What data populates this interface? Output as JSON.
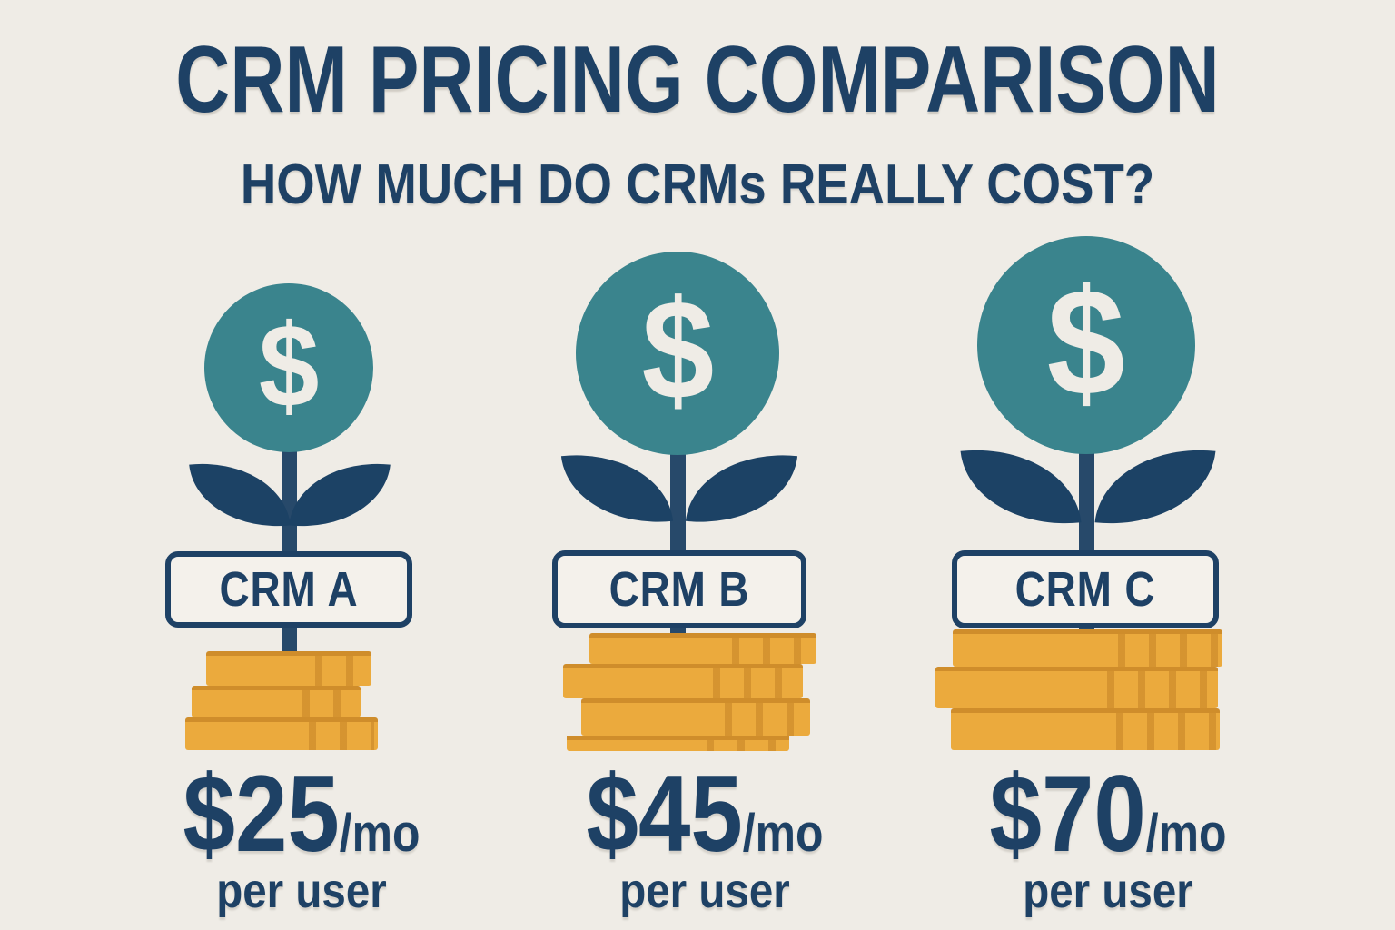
{
  "header": {
    "title": "CRM PRICING COMPARISON",
    "subtitle": "HOW MUCH DO CRMs REALLY COST?"
  },
  "colors": {
    "background": "#efece6",
    "navy_text": "#1e4165",
    "leaf_navy": "#1c4265",
    "stem_navy": "#27496a",
    "teal_circle": "#3a848d",
    "coin_gold": "#ebaa3d",
    "coin_gold_dark": "#cf8d2b",
    "label_box_fill": "#f4f1eb"
  },
  "chart_data": {
    "type": "bar",
    "title": "CRM PRICING COMPARISON",
    "subtitle": "HOW MUCH DO CRMs REALLY COST?",
    "categories": [
      "CRM A",
      "CRM B",
      "CRM C"
    ],
    "values": [
      25,
      45,
      70
    ],
    "unit": "USD per month per user",
    "value_labels": [
      "$25/mo per user",
      "$45/mo per user",
      "$70/mo per user"
    ],
    "legend_position": "none",
    "grid": false
  },
  "columns": [
    {
      "label": "CRM A",
      "symbol": "$",
      "amount": "$25",
      "period": "/mo",
      "per_user": "per user",
      "coins": 3
    },
    {
      "label": "CRM B",
      "symbol": "$",
      "amount": "$45",
      "period": "/mo",
      "per_user": "per user",
      "coins": 4
    },
    {
      "label": "CRM C",
      "symbol": "$",
      "amount": "$70",
      "period": "/mo",
      "per_user": "per user",
      "coins": 3
    }
  ]
}
